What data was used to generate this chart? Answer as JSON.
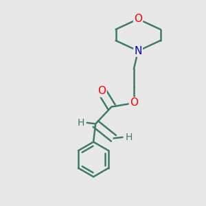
{
  "background_color": "#e8e8e8",
  "bond_color": "#3d7a6a",
  "bond_width": 1.8,
  "atom_colors": {
    "O": "#ff0000",
    "N": "#0000cc",
    "H": "#3d7a6a"
  },
  "font_size_atom": 11,
  "font_size_H": 10,
  "figsize": [
    3.0,
    3.0
  ],
  "dpi": 100
}
